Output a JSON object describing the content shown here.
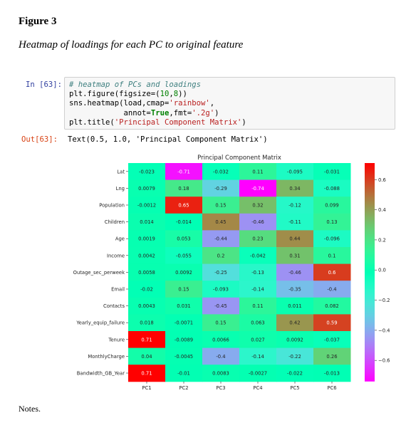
{
  "figure": {
    "label": "Figure 3",
    "caption": "Heatmap of loadings for each PC to original feature",
    "notes": "Notes."
  },
  "cell": {
    "in_prompt": "In [63]:",
    "out_prompt": "Out[63]:",
    "code": {
      "line1": "# heatmap of PCs and loadings",
      "line2_a": "plt.figure(figsize=(",
      "line2_n1": "10",
      "line2_b": ",",
      "line2_n2": "8",
      "line2_c": "))",
      "line3_a": "sns.heatmap(load,cmap=",
      "line3_s": "'rainbow'",
      "line3_b": ",",
      "line4_a": "            annot=",
      "line4_kw": "True",
      "line4_b": ",fmt=",
      "line4_s": "'.2g'",
      "line4_c": ")",
      "line5_a": "plt.title(",
      "line5_s": "'Principal Component Matrix'",
      "line5_b": ")"
    },
    "output": "Text(0.5, 1.0, 'Principal Component Matrix')"
  },
  "chart_data": {
    "type": "heatmap",
    "title": "Principal Component Matrix",
    "colormap": "rainbow",
    "columns": [
      "PC1",
      "PC2",
      "PC3",
      "PC4",
      "PC5",
      "PC6"
    ],
    "rows": [
      "Lat",
      "Lng",
      "Population",
      "Children",
      "Age",
      "Income",
      "Outage_sec_perweek",
      "Email",
      "Contacts",
      "Yearly_equip_failure",
      "Tenure",
      "MonthlyCharge",
      "Bandwidth_GB_Year"
    ],
    "values": [
      [
        -0.023,
        -0.71,
        -0.032,
        0.11,
        -0.095,
        -0.031
      ],
      [
        0.0079,
        0.18,
        -0.29,
        -0.74,
        0.34,
        -0.088
      ],
      [
        -0.0012,
        0.65,
        0.15,
        0.32,
        -0.12,
        0.099
      ],
      [
        0.014,
        -0.014,
        0.45,
        -0.46,
        -0.11,
        0.13
      ],
      [
        0.0019,
        0.053,
        -0.44,
        0.23,
        0.44,
        -0.096
      ],
      [
        0.0042,
        -0.055,
        0.2,
        -0.042,
        0.31,
        0.1
      ],
      [
        0.0058,
        0.0092,
        -0.25,
        -0.13,
        -0.46,
        0.6
      ],
      [
        -0.02,
        0.15,
        -0.093,
        -0.14,
        -0.35,
        -0.4
      ],
      [
        0.0043,
        0.031,
        -0.45,
        0.11,
        0.011,
        0.082
      ],
      [
        0.018,
        -0.0071,
        0.15,
        0.063,
        0.42,
        0.59
      ],
      [
        0.71,
        -0.0089,
        0.0066,
        0.027,
        0.0092,
        -0.037
      ],
      [
        0.04,
        -0.0045,
        -0.4,
        -0.14,
        -0.22,
        0.26
      ],
      [
        0.71,
        -0.01,
        0.0083,
        -0.0027,
        -0.022,
        -0.013
      ]
    ],
    "labels": [
      [
        "-0.023",
        "-0.71",
        "-0.032",
        "0.11",
        "-0.095",
        "-0.031"
      ],
      [
        "0.0079",
        "0.18",
        "-0.29",
        "-0.74",
        "0.34",
        "-0.088"
      ],
      [
        "-0.0012",
        "0.65",
        "0.15",
        "0.32",
        "-0.12",
        "0.099"
      ],
      [
        "0.014",
        "-0.014",
        "0.45",
        "-0.46",
        "-0.11",
        "0.13"
      ],
      [
        "0.0019",
        "0.053",
        "-0.44",
        "0.23",
        "0.44",
        "-0.096"
      ],
      [
        "0.0042",
        "-0.055",
        "0.2",
        "-0.042",
        "0.31",
        "0.1"
      ],
      [
        "0.0058",
        "0.0092",
        "-0.25",
        "-0.13",
        "-0.46",
        "0.6"
      ],
      [
        "-0.02",
        "0.15",
        "-0.093",
        "-0.14",
        "-0.35",
        "-0.4"
      ],
      [
        "0.0043",
        "0.031",
        "-0.45",
        "0.11",
        "0.011",
        "0.082"
      ],
      [
        "0.018",
        "-0.0071",
        "0.15",
        "0.063",
        "0.42",
        "0.59"
      ],
      [
        "0.71",
        "-0.0089",
        "0.0066",
        "0.027",
        "0.0092",
        "-0.037"
      ],
      [
        "0.04",
        "-0.0045",
        "-0.4",
        "-0.14",
        "-0.22",
        "0.26"
      ],
      [
        "0.71",
        "-0.01",
        "0.0083",
        "-0.0027",
        "-0.022",
        "-0.013"
      ]
    ],
    "vmin": -0.74,
    "vmax": 0.71,
    "colorbar_ticks": [
      0.6,
      0.4,
      0.2,
      0.0,
      -0.2,
      -0.4,
      -0.6
    ],
    "colorbar_tick_labels": [
      "0.6",
      "0.4",
      "0.2",
      "0.0",
      "−0.2",
      "−0.4",
      "−0.6"
    ]
  }
}
